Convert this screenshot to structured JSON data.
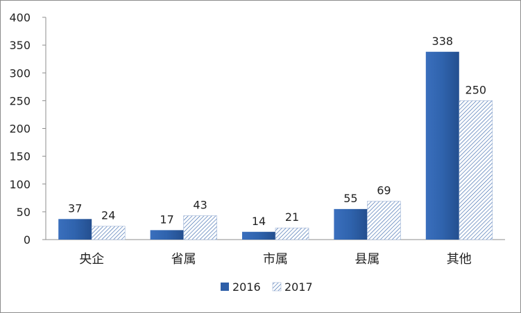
{
  "chart_data": {
    "type": "bar",
    "title": "",
    "xlabel": "",
    "ylabel": "",
    "categories": [
      "央企",
      "省属",
      "市属",
      "县属",
      "其他"
    ],
    "series": [
      {
        "name": "2016",
        "values": [
          37,
          17,
          14,
          55,
          338
        ],
        "color": "#2e5fa8",
        "fill": "solid"
      },
      {
        "name": "2017",
        "values": [
          24,
          43,
          21,
          69,
          250
        ],
        "color": "#2e5fa8",
        "fill": "hatched"
      }
    ],
    "ylim": [
      0,
      400
    ],
    "yticks": [
      0,
      50,
      100,
      150,
      200,
      250,
      300,
      350,
      400
    ],
    "grid": false,
    "legend": "bottom-center",
    "data_labels": true
  }
}
